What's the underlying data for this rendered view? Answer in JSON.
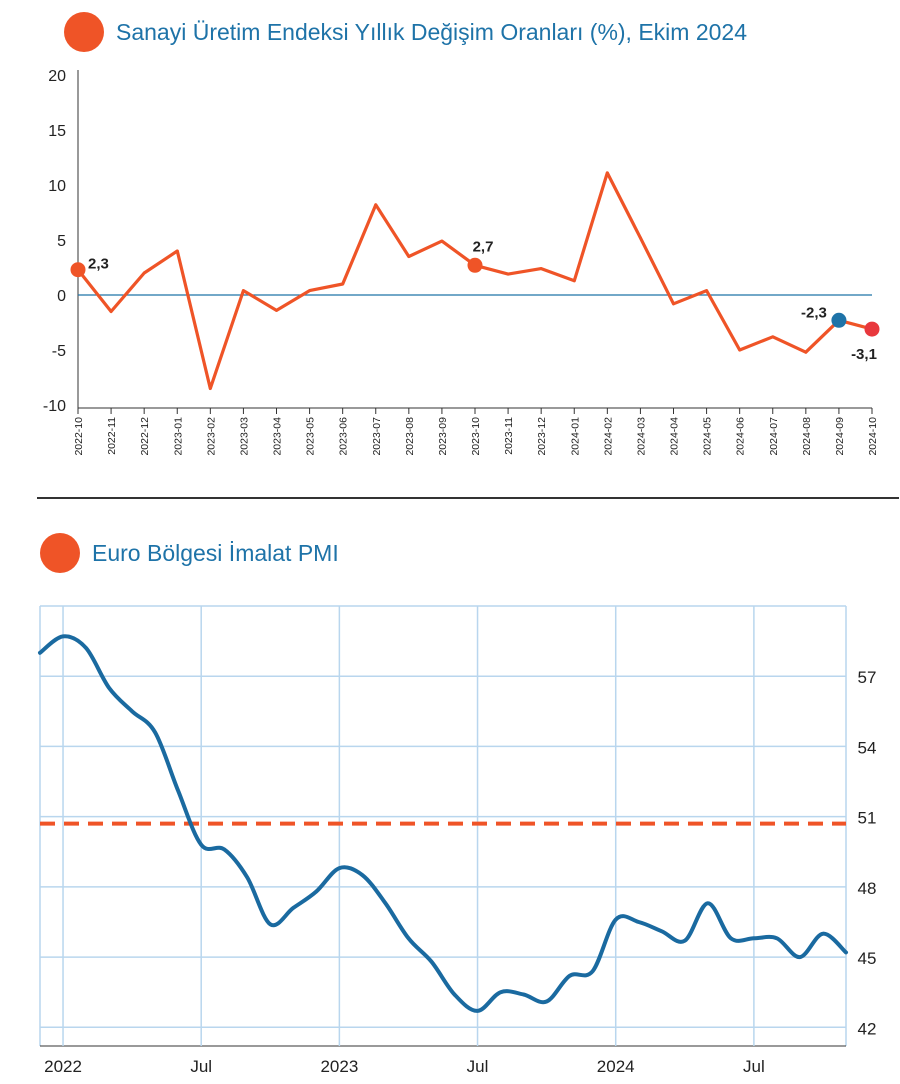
{
  "colors": {
    "accent": "#EF5427",
    "title": "#1E73A8",
    "line1": "#EF5427",
    "zero_line": "#1E73A8",
    "pmi_line": "#1A6AA0",
    "threshold": "#EF5427",
    "grid": "#B9D6EE",
    "sep_point": "#1E73A8",
    "oct_point": "#E8383D"
  },
  "chart_data": [
    {
      "type": "line",
      "title": "Sanayi Üretim Endeksi Yıllık Değişim Oranları (%), Ekim 2024",
      "xlabel": "",
      "ylabel": "",
      "categories": [
        "2022-10",
        "2022-11",
        "2022-12",
        "2023-01",
        "2023-02",
        "2023-03",
        "2023-04",
        "2023-05",
        "2023-06",
        "2023-07",
        "2023-08",
        "2023-09",
        "2023-10",
        "2023-11",
        "2023-12",
        "2024-01",
        "2024-02",
        "2024-03",
        "2024-04",
        "2024-05",
        "2024-06",
        "2024-07",
        "2024-08",
        "2024-09",
        "2024-10"
      ],
      "series": [
        {
          "values": [
            2.3,
            -1.5,
            2.0,
            4.0,
            -8.5,
            0.4,
            -1.4,
            0.4,
            1.0,
            8.2,
            3.5,
            4.9,
            2.7,
            1.9,
            2.4,
            1.3,
            11.1,
            5.2,
            -0.8,
            0.4,
            -5.0,
            -3.8,
            -5.2,
            -2.3,
            -3.1
          ]
        }
      ],
      "yticks": [
        "20",
        "15",
        "10",
        "5",
        "0",
        "-5",
        "-10"
      ],
      "ylim": [
        -10,
        20
      ],
      "grid": false,
      "reference_line": 0,
      "annotations": [
        {
          "category": "2022-10",
          "text": "2,3"
        },
        {
          "category": "2023-10",
          "text": "2,7"
        },
        {
          "category": "2024-09",
          "text": "-2,3"
        },
        {
          "category": "2024-10",
          "text": "-3,1"
        }
      ]
    },
    {
      "type": "line",
      "title": "Euro Bölgesi İmalat PMI",
      "xlabel": "",
      "ylabel": "",
      "x_ticks": [
        "2022",
        "Jul",
        "2023",
        "Jul",
        "2024",
        "Jul"
      ],
      "x_range": [
        "2021-12",
        "2024-11"
      ],
      "yticks": [
        "57",
        "54",
        "51",
        "48",
        "45",
        "42"
      ],
      "ylim": [
        41.2,
        60
      ],
      "grid": true,
      "reference_line": 50.7,
      "series": [
        {
          "x": [
            "2021-12",
            "2022-01",
            "2022-02",
            "2022-03",
            "2022-04",
            "2022-05",
            "2022-06",
            "2022-07",
            "2022-08",
            "2022-09",
            "2022-10",
            "2022-11",
            "2022-12",
            "2023-01",
            "2023-02",
            "2023-03",
            "2023-04",
            "2023-05",
            "2023-06",
            "2023-07",
            "2023-08",
            "2023-09",
            "2023-10",
            "2023-11",
            "2023-12",
            "2024-01",
            "2024-02",
            "2024-03",
            "2024-04",
            "2024-05",
            "2024-06",
            "2024-07",
            "2024-08",
            "2024-09",
            "2024-10",
            "2024-11"
          ],
          "values": [
            58.0,
            58.7,
            58.2,
            56.5,
            55.5,
            54.6,
            52.1,
            49.8,
            49.6,
            48.4,
            46.4,
            47.1,
            47.8,
            48.8,
            48.5,
            47.3,
            45.8,
            44.8,
            43.4,
            42.7,
            43.5,
            43.4,
            43.1,
            44.2,
            44.4,
            46.6,
            46.5,
            46.1,
            45.7,
            47.3,
            45.8,
            45.8,
            45.8,
            45.0,
            46.0,
            45.2
          ]
        }
      ]
    }
  ]
}
